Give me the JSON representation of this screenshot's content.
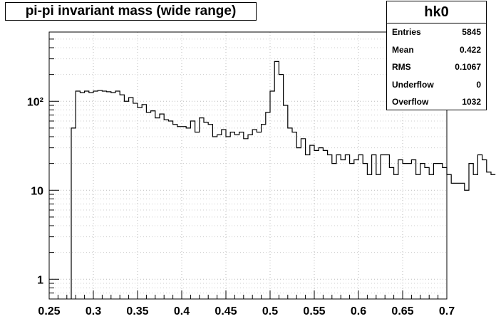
{
  "chart_data": {
    "type": "histogram",
    "title": "pi-pi invariant mass (wide range)",
    "histogram_name": "hk0",
    "xlim": [
      0.25,
      0.7
    ],
    "ylim": [
      0.6,
      600
    ],
    "ylog": true,
    "grid": true,
    "x_ticks": [
      "0.25",
      "0.3",
      "0.35",
      "0.4",
      "0.45",
      "0.5",
      "0.55",
      "0.6",
      "0.65",
      "0.7"
    ],
    "y_ticks": [
      "1",
      "10",
      "10²"
    ],
    "x_start": 0.275,
    "bin_width": 0.005,
    "values": [
      50,
      130,
      125,
      130,
      125,
      130,
      132,
      130,
      128,
      125,
      130,
      118,
      100,
      110,
      95,
      85,
      92,
      75,
      78,
      65,
      72,
      62,
      60,
      55,
      52,
      52,
      50,
      60,
      45,
      65,
      58,
      55,
      40,
      42,
      48,
      40,
      45,
      42,
      45,
      38,
      42,
      48,
      45,
      55,
      75,
      130,
      280,
      200,
      90,
      50,
      45,
      30,
      38,
      25,
      32,
      28,
      30,
      28,
      25,
      20,
      25,
      22,
      25,
      20,
      22,
      25,
      20,
      15,
      25,
      15,
      25,
      25,
      18,
      15,
      22,
      20,
      20,
      22,
      15,
      20,
      18,
      15,
      20,
      20,
      18,
      15,
      12,
      12,
      12,
      10,
      20,
      15,
      25,
      22,
      16,
      15
    ]
  },
  "stats": {
    "rows": [
      {
        "label": "Entries",
        "value": "5845"
      },
      {
        "label": "Mean",
        "value": "0.422"
      },
      {
        "label": "RMS",
        "value": "0.1067"
      },
      {
        "label": "Underflow",
        "value": "0"
      },
      {
        "label": "Overflow",
        "value": "1032"
      }
    ]
  }
}
